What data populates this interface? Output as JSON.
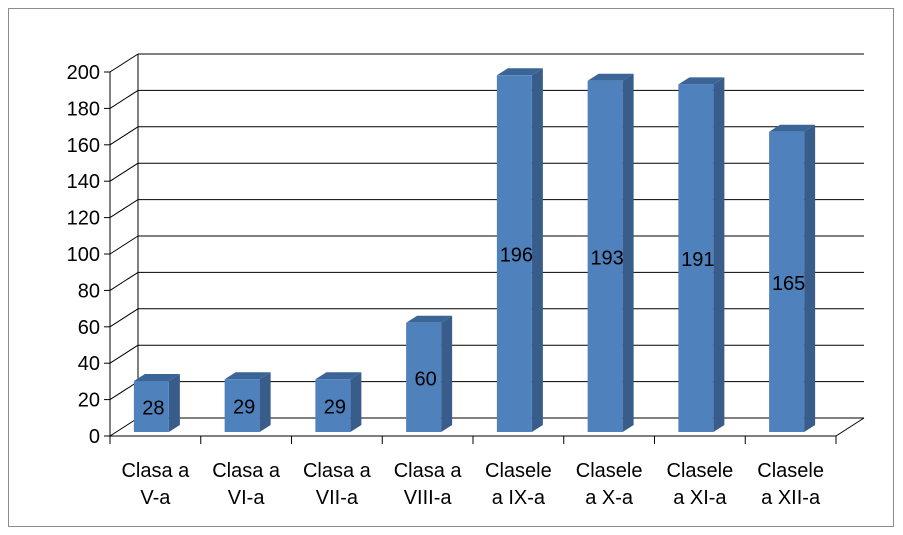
{
  "chart_data": {
    "type": "bar",
    "style": "3d-column",
    "categories": [
      [
        "Clasa a",
        "V-a"
      ],
      [
        "Clasa a",
        "VI-a"
      ],
      [
        "Clasa a",
        "VII-a"
      ],
      [
        "Clasa a",
        "VIII-a"
      ],
      [
        "Clasele",
        "a IX-a"
      ],
      [
        "Clasele",
        "a X-a"
      ],
      [
        "Clasele",
        "a XI-a"
      ],
      [
        "Clasele",
        "a XII-a"
      ]
    ],
    "values": [
      28,
      29,
      29,
      60,
      196,
      193,
      191,
      165
    ],
    "data_labels": [
      "28",
      "29",
      "29",
      "60",
      "196",
      "193",
      "191",
      "165"
    ],
    "ylim": [
      0,
      200
    ],
    "yticks": [
      "0",
      "20",
      "40",
      "60",
      "80",
      "100",
      "120",
      "140",
      "160",
      "180",
      "200"
    ],
    "grid": true,
    "legend": "none",
    "colors": {
      "bar_front": "#4f81bd",
      "bar_side": "#385d8a",
      "bar_top": "#3a6596",
      "grid": "#000000",
      "frame": "#8c8c8c"
    }
  }
}
